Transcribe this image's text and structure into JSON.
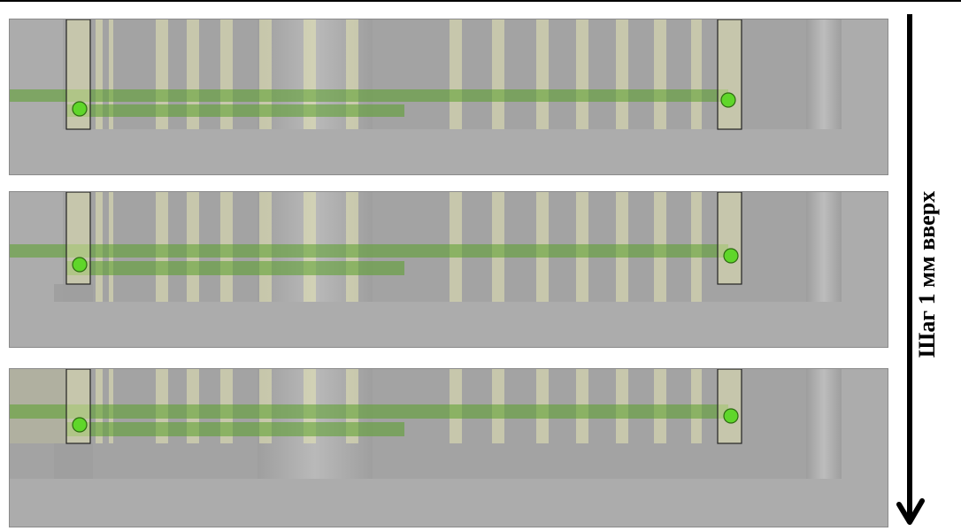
{
  "side_label": "Шаг 1 мм вверх",
  "colors": {
    "background": "#acacac",
    "stripe_light": "#e6e6b4",
    "beam_green": "#5aa02a",
    "dot_green": "#5fd62a",
    "frame_yellow": "#f2f2b8"
  },
  "icons": {
    "arrow": "arrow-down-icon",
    "marker": "green-circle-marker"
  },
  "panels": [
    {
      "name": "panel-1"
    },
    {
      "name": "panel-2"
    },
    {
      "name": "panel-3"
    }
  ]
}
